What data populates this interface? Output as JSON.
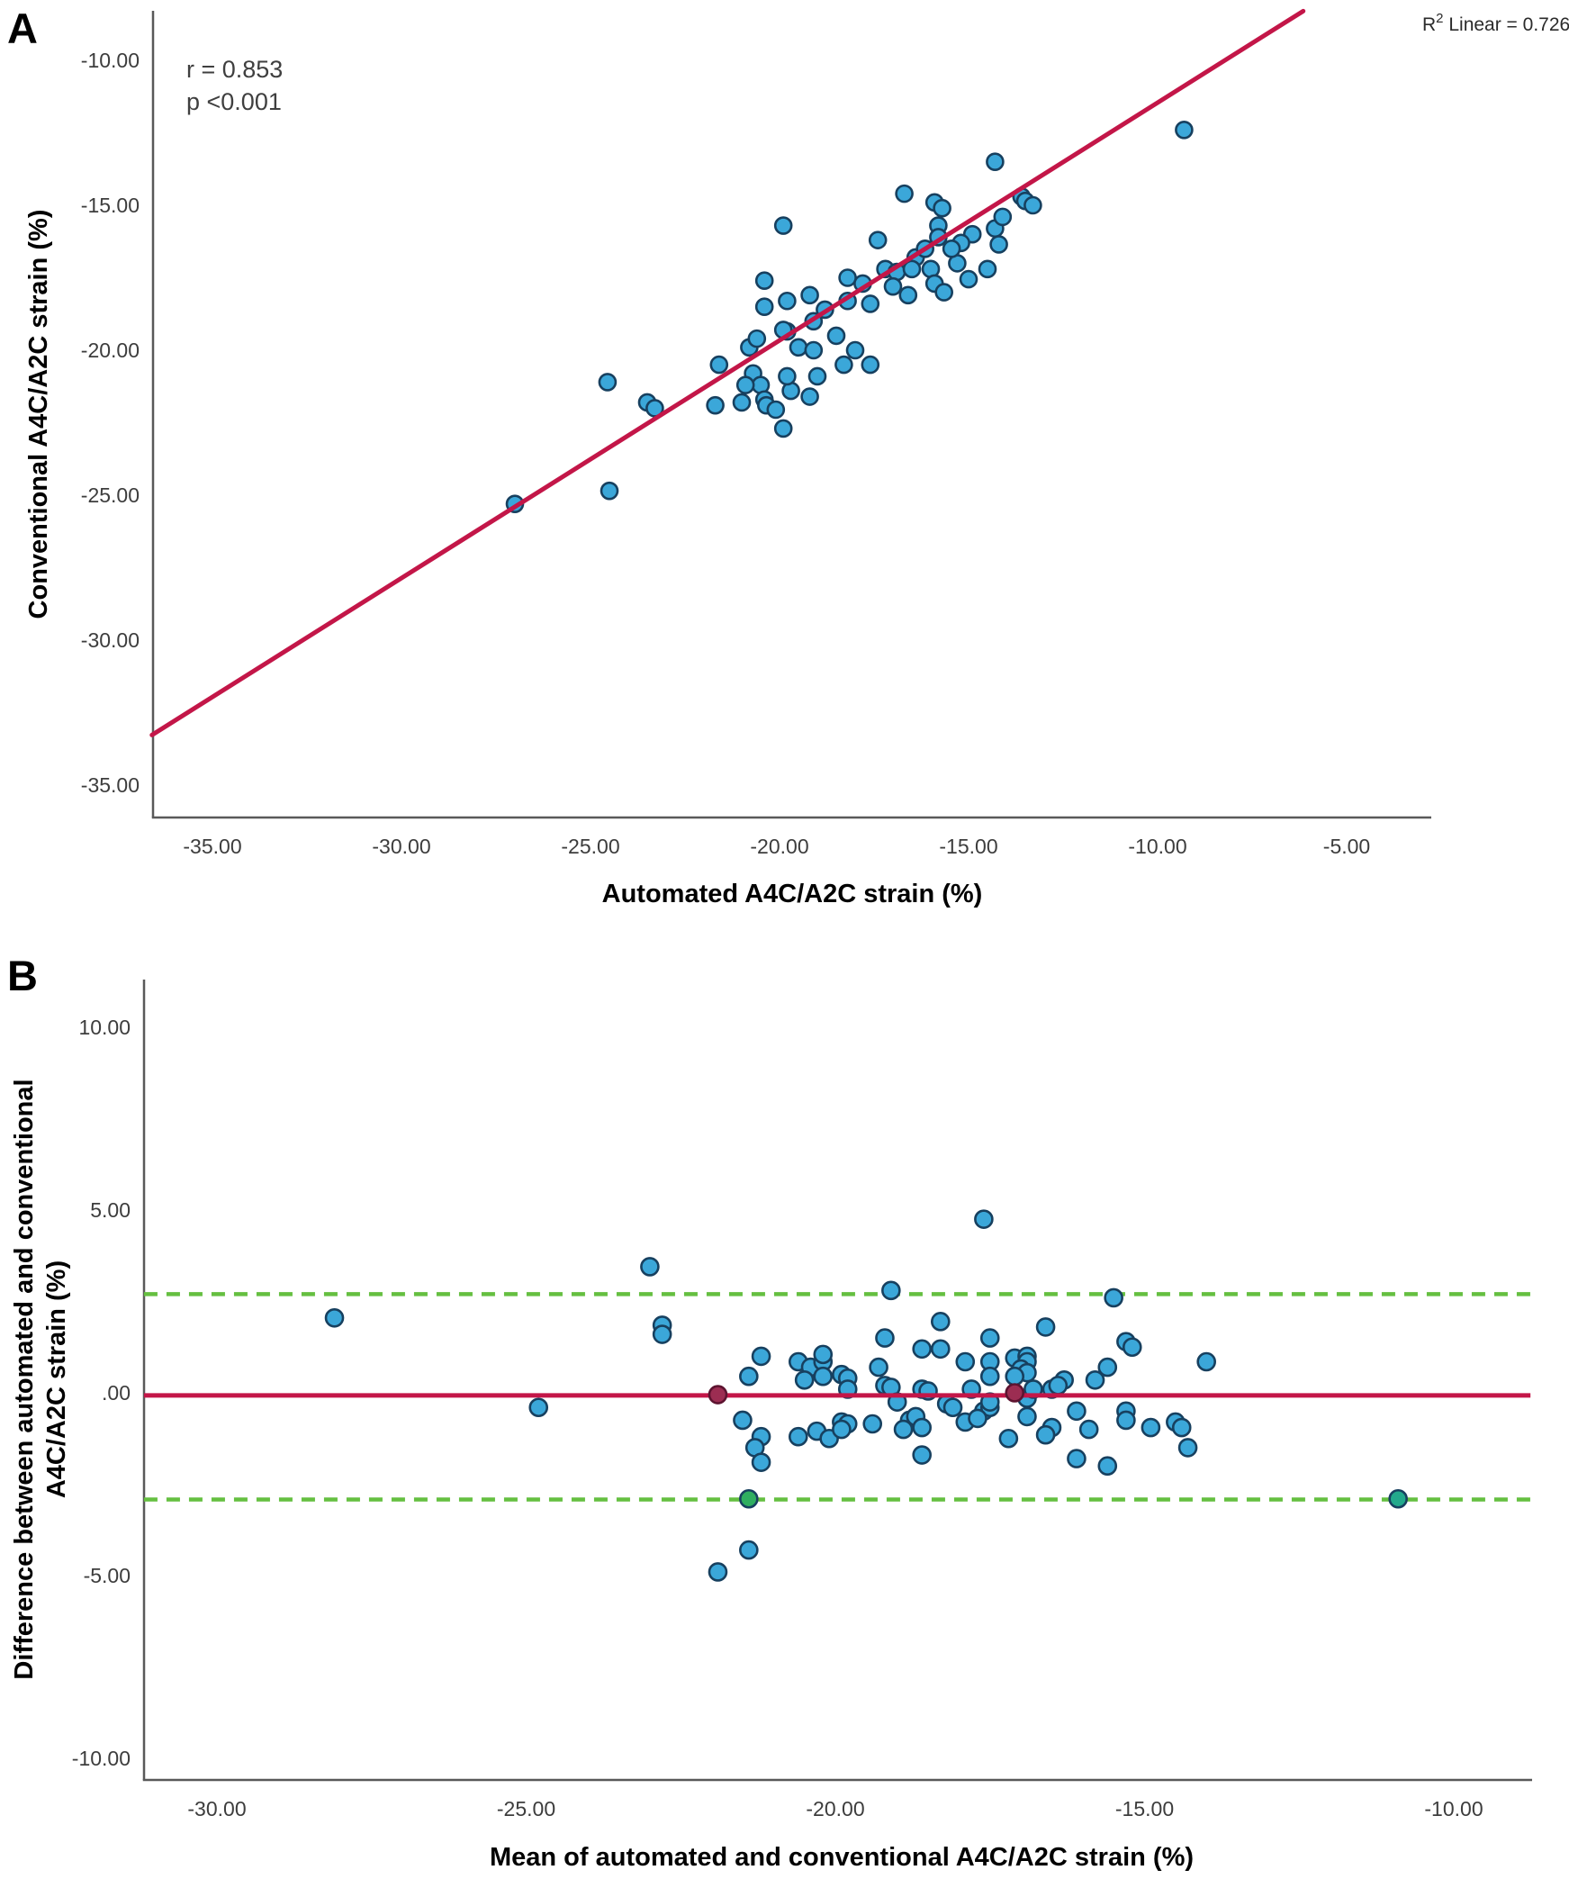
{
  "figure": {
    "panel_a_letter": "A",
    "panel_b_letter": "B",
    "annotations": {
      "r_text": "r = 0.853",
      "p_text": "p <0.001",
      "r2_base": "R",
      "r2_sup": "2",
      "r2_rest": " Linear = 0.726"
    }
  },
  "colors": {
    "point_fill": "#3ba7d9",
    "point_stroke": "#17405f",
    "trend_red": "#c31648",
    "loa_green": "#65bf40",
    "maroon_point": "#9c2d52",
    "green_point": "#2fae60",
    "teal_point": "#23a98c",
    "axis_line": "#595959"
  },
  "chart_data": [
    {
      "type": "scatter",
      "panel": "A",
      "xlabel": "Automated A4C/A2C strain (%)",
      "ylabel": "Conventional A4C/A2C strain (%)",
      "xlim": [
        -36.6,
        -2.8
      ],
      "ylim": [
        -36.1,
        -8.3
      ],
      "grid": false,
      "x_ticks": {
        "values": [
          -35,
          -30,
          -25,
          -20,
          -15,
          -10,
          -5
        ],
        "labels": [
          "-35.00",
          "-30.00",
          "-25.00",
          "-20.00",
          "-15.00",
          "-10.00",
          "-5.00"
        ]
      },
      "y_ticks": {
        "values": [
          -10,
          -15,
          -20,
          -25,
          -30,
          -35
        ],
        "labels": [
          "-10.00",
          "-15.00",
          "-20.00",
          "-25.00",
          "-30.00",
          "-35.00"
        ]
      },
      "stats": {
        "r": "0.853",
        "p": "<0.001",
        "r2_linear": "0.726"
      },
      "trend_line": {
        "slope": 0.82,
        "intercept": -3.26,
        "x_start": -36.6,
        "x_end": -6.15
      },
      "points": [
        [
          -14.3,
          -13.5
        ],
        [
          -16.7,
          -14.6
        ],
        [
          -15.9,
          -14.9
        ],
        [
          -15.7,
          -15.1
        ],
        [
          -19.9,
          -15.7
        ],
        [
          -15.8,
          -15.7
        ],
        [
          -15.8,
          -16.1
        ],
        [
          -17.4,
          -16.2
        ],
        [
          -14.9,
          -16.0
        ],
        [
          -14.3,
          -15.8
        ],
        [
          -13.6,
          -14.7
        ],
        [
          -13.5,
          -14.85
        ],
        [
          -13.3,
          -15.0
        ],
        [
          -14.1,
          -15.4
        ],
        [
          -14.2,
          -16.35
        ],
        [
          -15.2,
          -16.3
        ],
        [
          -16.4,
          -16.8
        ],
        [
          -17.2,
          -17.2
        ],
        [
          -16.9,
          -17.3
        ],
        [
          -16.5,
          -17.2
        ],
        [
          -16.0,
          -17.2
        ],
        [
          -15.3,
          -17.0
        ],
        [
          -14.5,
          -17.2
        ],
        [
          -15.0,
          -17.55
        ],
        [
          -15.9,
          -17.7
        ],
        [
          -15.65,
          -18.0
        ],
        [
          -18.2,
          -17.5
        ],
        [
          -17.8,
          -17.7
        ],
        [
          -17.6,
          -18.4
        ],
        [
          -18.2,
          -18.3
        ],
        [
          -19.2,
          -18.1
        ],
        [
          -18.8,
          -18.6
        ],
        [
          -19.1,
          -19.0
        ],
        [
          -20.4,
          -18.5
        ],
        [
          -19.8,
          -19.35
        ],
        [
          -19.5,
          -19.9
        ],
        [
          -18.5,
          -19.5
        ],
        [
          -18.0,
          -20.0
        ],
        [
          -18.3,
          -20.5
        ],
        [
          -17.6,
          -20.5
        ],
        [
          -20.7,
          -20.8
        ],
        [
          -20.5,
          -21.2
        ],
        [
          -20.9,
          -21.2
        ],
        [
          -19.0,
          -20.9
        ],
        [
          -19.7,
          -21.4
        ],
        [
          -19.2,
          -21.6
        ],
        [
          -20.4,
          -17.6
        ],
        [
          -19.8,
          -18.3
        ],
        [
          -24.55,
          -21.1
        ],
        [
          -23.5,
          -21.8
        ],
        [
          -23.3,
          -22.0
        ],
        [
          -21.6,
          -20.5
        ],
        [
          -21.7,
          -21.9
        ],
        [
          -21.0,
          -21.8
        ],
        [
          -20.4,
          -21.7
        ],
        [
          -20.35,
          -21.9
        ],
        [
          -20.1,
          -22.05
        ],
        [
          -19.9,
          -22.7
        ],
        [
          -24.5,
          -24.85
        ],
        [
          -27.0,
          -25.3
        ],
        [
          -20.8,
          -19.9
        ],
        [
          -20.6,
          -19.6
        ],
        [
          -19.9,
          -19.3
        ],
        [
          -19.8,
          -20.9
        ],
        [
          -19.1,
          -20.0
        ],
        [
          -15.45,
          -16.5
        ],
        [
          -16.15,
          -16.5
        ],
        [
          -17.0,
          -17.8
        ],
        [
          -16.6,
          -18.1
        ],
        [
          -9.3,
          -12.4
        ]
      ]
    },
    {
      "type": "scatter",
      "panel": "B",
      "subtype": "bland-altman",
      "xlabel": "Mean of automated and conventional A4C/A2C strain (%)",
      "ylabel_line1": "Difference between automated and conventional",
      "ylabel_line2": "A4C/A2C strain (%)",
      "xlim": [
        -31.2,
        -8.76
      ],
      "ylim": [
        -10.6,
        10.7
      ],
      "grid": false,
      "x_ticks": {
        "values": [
          -30,
          -25,
          -20,
          -15,
          -10
        ],
        "labels": [
          "-30.00",
          "-25.00",
          "-20.00",
          "-15.00",
          "-10.00"
        ]
      },
      "y_ticks": {
        "values": [
          10,
          5,
          0,
          -5,
          -10
        ],
        "labels": [
          "10.00",
          "5.00",
          ".00",
          "-5.00",
          "-10.00"
        ]
      },
      "mean_line": -0.07,
      "upper_loa": 2.7,
      "lower_loa": -2.92,
      "line_x_start": -31.18,
      "line_x_end": -8.76,
      "points": [
        [
          -28.1,
          2.05
        ],
        [
          -24.8,
          -0.4
        ],
        [
          -23.0,
          3.45
        ],
        [
          -22.8,
          1.85
        ],
        [
          -22.8,
          1.6
        ],
        [
          -21.4,
          0.45
        ],
        [
          -21.2,
          1.0
        ],
        [
          -21.5,
          -0.75
        ],
        [
          -21.2,
          -1.2
        ],
        [
          -21.3,
          -1.5
        ],
        [
          -21.2,
          -1.9
        ],
        [
          -20.6,
          0.85
        ],
        [
          -20.4,
          0.7
        ],
        [
          -20.2,
          0.85
        ],
        [
          -20.2,
          1.05
        ],
        [
          -20.5,
          0.35
        ],
        [
          -20.2,
          0.45
        ],
        [
          -19.9,
          0.5
        ],
        [
          -19.8,
          0.4
        ],
        [
          -19.8,
          0.1
        ],
        [
          -20.6,
          -1.2
        ],
        [
          -20.3,
          -1.05
        ],
        [
          -20.1,
          -1.25
        ],
        [
          -19.9,
          -0.8
        ],
        [
          -19.8,
          -0.85
        ],
        [
          -19.9,
          -1.0
        ],
        [
          -19.4,
          -0.85
        ],
        [
          -19.3,
          0.7
        ],
        [
          -19.2,
          1.5
        ],
        [
          -19.2,
          0.2
        ],
        [
          -19.1,
          0.15
        ],
        [
          -19.1,
          2.8
        ],
        [
          -19.0,
          -0.25
        ],
        [
          -18.8,
          -0.75
        ],
        [
          -18.9,
          -1.0
        ],
        [
          -17.6,
          4.75
        ],
        [
          -15.5,
          2.6
        ],
        [
          -18.3,
          1.95
        ],
        [
          -16.6,
          1.8
        ],
        [
          -17.5,
          1.5
        ],
        [
          -18.6,
          1.2
        ],
        [
          -18.3,
          1.2
        ],
        [
          -17.9,
          0.85
        ],
        [
          -17.5,
          0.85
        ],
        [
          -17.5,
          0.45
        ],
        [
          -17.1,
          0.95
        ],
        [
          -16.9,
          1.0
        ],
        [
          -16.9,
          0.85
        ],
        [
          -17.0,
          0.65
        ],
        [
          -16.9,
          0.55
        ],
        [
          -17.1,
          0.45
        ],
        [
          -16.3,
          0.35
        ],
        [
          -15.8,
          0.35
        ],
        [
          -15.6,
          0.7
        ],
        [
          -15.3,
          1.4
        ],
        [
          -15.2,
          1.25
        ],
        [
          -14.0,
          0.85
        ],
        [
          -18.6,
          0.1
        ],
        [
          -18.5,
          0.05
        ],
        [
          -17.8,
          0.1
        ],
        [
          -16.9,
          -0.15
        ],
        [
          -16.8,
          0.1
        ],
        [
          -16.5,
          0.1
        ],
        [
          -16.4,
          0.2
        ],
        [
          -18.2,
          -0.3
        ],
        [
          -18.1,
          -0.4
        ],
        [
          -17.6,
          -0.5
        ],
        [
          -17.5,
          -0.4
        ],
        [
          -17.5,
          -0.25
        ],
        [
          -18.7,
          -0.65
        ],
        [
          -18.6,
          -0.95
        ],
        [
          -17.9,
          -0.8
        ],
        [
          -17.7,
          -0.7
        ],
        [
          -17.2,
          -1.25
        ],
        [
          -16.9,
          -0.65
        ],
        [
          -16.5,
          -0.95
        ],
        [
          -16.6,
          -1.15
        ],
        [
          -16.1,
          -0.5
        ],
        [
          -15.9,
          -1.0
        ],
        [
          -15.3,
          -0.5
        ],
        [
          -15.3,
          -0.75
        ],
        [
          -14.9,
          -0.95
        ],
        [
          -14.5,
          -0.8
        ],
        [
          -14.4,
          -0.95
        ],
        [
          -14.3,
          -1.5
        ],
        [
          -18.6,
          -1.7
        ],
        [
          -16.1,
          -1.8
        ],
        [
          -15.6,
          -2.0
        ],
        [
          -21.4,
          -4.3
        ],
        [
          -21.9,
          -4.9
        ]
      ],
      "highlight_points": [
        {
          "x": -21.9,
          "y": -0.05,
          "type": "maroon"
        },
        {
          "x": -17.1,
          "y": 0.0,
          "type": "maroon"
        },
        {
          "x": -21.4,
          "y": -2.9,
          "type": "green"
        },
        {
          "x": -10.9,
          "y": -2.9,
          "type": "teal"
        }
      ]
    }
  ]
}
